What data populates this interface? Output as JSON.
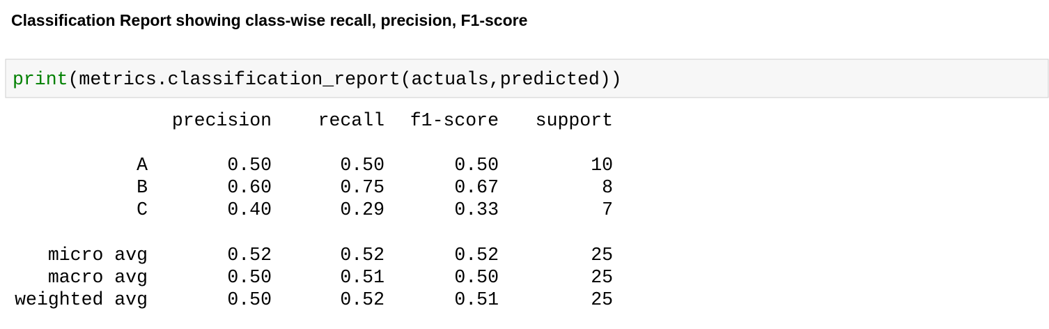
{
  "header": {
    "title": "Classification Report showing class-wise recall, precision, F1-score"
  },
  "code": {
    "keyword": "print",
    "rest": "(metrics.classification_report(actuals,predicted))"
  },
  "output": {
    "columns": [
      "precision",
      "recall",
      "f1-score",
      "support"
    ],
    "rows": [
      {
        "label": "A",
        "values": [
          "0.50",
          "0.50",
          "0.50",
          "10"
        ]
      },
      {
        "label": "B",
        "values": [
          "0.60",
          "0.75",
          "0.67",
          "8"
        ]
      },
      {
        "label": "C",
        "values": [
          "0.40",
          "0.29",
          "0.33",
          "7"
        ]
      },
      {
        "label": "micro avg",
        "values": [
          "0.52",
          "0.52",
          "0.52",
          "25"
        ]
      },
      {
        "label": "macro avg",
        "values": [
          "0.50",
          "0.51",
          "0.50",
          "25"
        ]
      },
      {
        "label": "weighted avg",
        "values": [
          "0.50",
          "0.52",
          "0.51",
          "25"
        ]
      }
    ]
  }
}
